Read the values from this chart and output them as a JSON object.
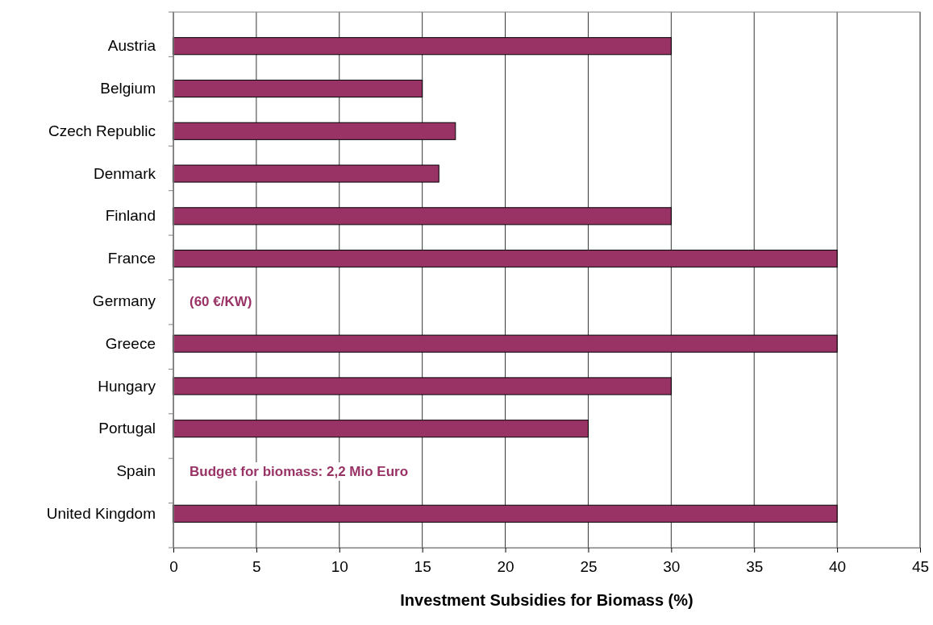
{
  "chart_data": {
    "type": "bar",
    "orientation": "horizontal",
    "xlabel": "Investment Subsidies for Biomass (%)",
    "categories": [
      "Austria",
      "Belgium",
      "Czech Republic",
      "Denmark",
      "Finland",
      "France",
      "Germany",
      "Greece",
      "Hungary",
      "Portugal",
      "Spain",
      "United Kingdom"
    ],
    "values": [
      30,
      15,
      17,
      16,
      30,
      40,
      null,
      40,
      30,
      25,
      null,
      40
    ],
    "color": "#993366",
    "xlim": [
      0,
      45
    ],
    "xticks": [
      0,
      5,
      10,
      15,
      20,
      25,
      30,
      35,
      40,
      45
    ],
    "grid": "x",
    "annotations": [
      "(60 €/KW)",
      "Budget for biomass: 2,2 Mio Euro"
    ]
  }
}
